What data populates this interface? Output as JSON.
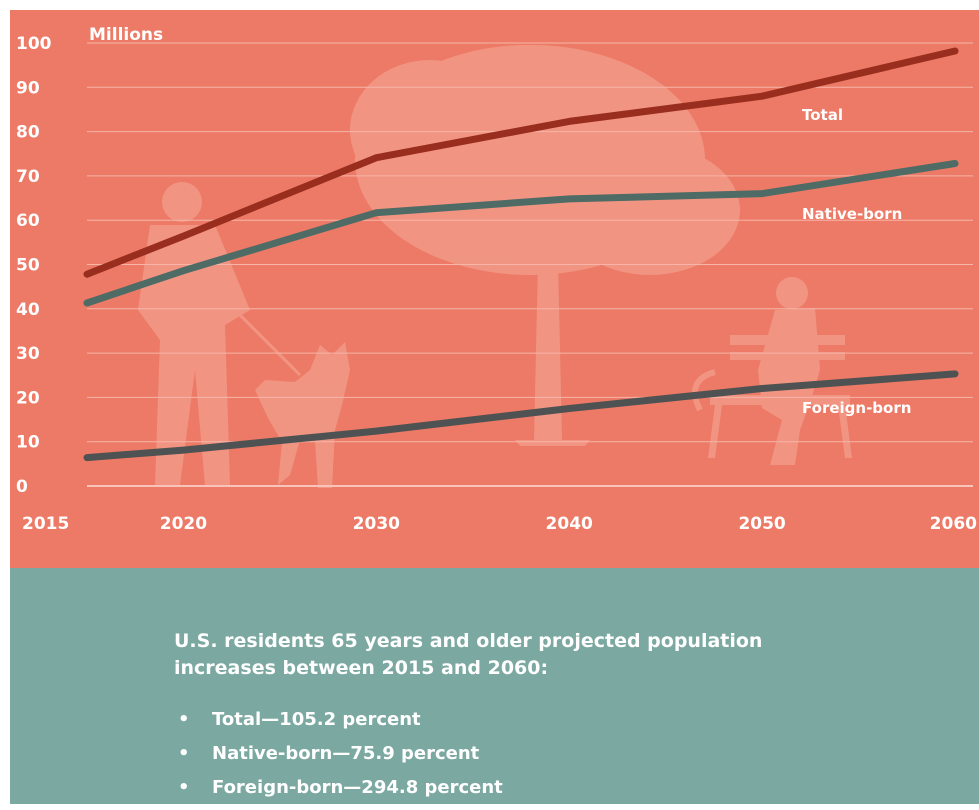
{
  "chart_data": {
    "type": "line",
    "title": "",
    "unit_label": "Millions",
    "xlabel": "",
    "ylabel": "",
    "x": [
      2015,
      2020,
      2030,
      2040,
      2050,
      2060
    ],
    "xticks": [
      "2015",
      "2020",
      "2030",
      "2040",
      "2050",
      "2060"
    ],
    "ylim": [
      0,
      100
    ],
    "yticks": [
      "0",
      "10",
      "20",
      "30",
      "40",
      "50",
      "60",
      "70",
      "80",
      "90",
      "100"
    ],
    "grid": true,
    "series": [
      {
        "name": "Total",
        "color": "#9a2e1e",
        "values": [
          47.8,
          56.4,
          74.1,
          82.3,
          88.0,
          98.2
        ]
      },
      {
        "name": "Native-born",
        "color": "#4e6b66",
        "values": [
          41.3,
          48.6,
          61.7,
          64.8,
          66.0,
          72.8
        ]
      },
      {
        "name": "Foreign-born",
        "color": "#4f5252",
        "values": [
          6.4,
          8.1,
          12.4,
          17.5,
          22.0,
          25.3
        ]
      }
    ]
  },
  "info": {
    "heading": "U.S. residents 65 years and older projected population increases between 2015 and 2060:",
    "bullets": [
      "Total—105.2 percent",
      "Native-born—75.9 percent",
      "Foreign-born—294.8 percent"
    ]
  },
  "colors": {
    "chart_background": "#ec7a66",
    "info_background": "#7ba8a0",
    "text": "#ffffff"
  }
}
